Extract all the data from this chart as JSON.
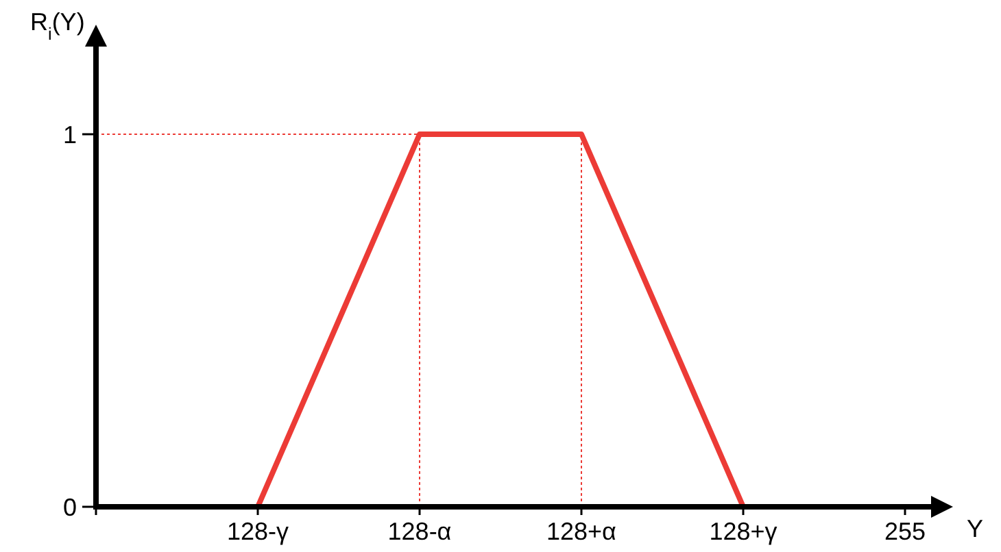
{
  "chart_data": {
    "type": "line",
    "xlabel": "Y",
    "ylabel": "R$_{i}$(Y)",
    "categories": [
      null,
      "128-γ",
      "128-α",
      "128+α",
      "128+γ",
      "255"
    ],
    "ylim": [
      0,
      1.25
    ],
    "yticks": [
      0,
      1
    ],
    "series": [
      {
        "color": "#ec3b36",
        "values": [
          0,
          0,
          1,
          1,
          0,
          0
        ]
      }
    ],
    "ref_lines": [
      {
        "axis": "y",
        "value": 1,
        "color": "#ec3b36",
        "line_style": "dotted"
      },
      {
        "axis": "x",
        "value": "128-α",
        "color": "#ec3b36",
        "line_style": "dotted"
      },
      {
        "axis": "x",
        "value": "128+α",
        "color": "#ec3b36",
        "line_style": "dotted"
      }
    ],
    "grid": false,
    "line_style": "solid"
  }
}
